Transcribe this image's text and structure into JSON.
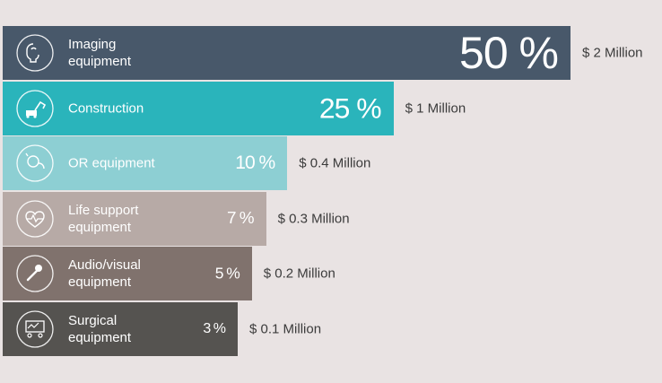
{
  "chart_data": {
    "type": "bar",
    "orientation": "horizontal",
    "categories": [
      "Imaging equipment",
      "Construction",
      "OR equipment",
      "Life support equipment",
      "Audio/visual equipment",
      "Surgical equipment"
    ],
    "series": [
      {
        "values": [
          50,
          25,
          10,
          7,
          5,
          3
        ]
      }
    ],
    "bars": [
      {
        "label": "Imaging\nequipment",
        "percent_label": "50 %",
        "percent": 50,
        "amount_label": "$ 2 Million",
        "color": "#48586a",
        "icon": "imaging-icon"
      },
      {
        "label": "Construction",
        "percent_label": "25 %",
        "percent": 25,
        "amount_label": "$ 1 Million",
        "color": "#2ab4bb",
        "icon": "excavator-icon"
      },
      {
        "label": "OR equipment",
        "percent_label": "10 %",
        "percent": 10,
        "amount_label": "$ 0.4 Million",
        "color": "#8dcfd3",
        "icon": "or-equipment-icon"
      },
      {
        "label": "Life support\nequipment",
        "percent_label": "7 %",
        "percent": 7,
        "amount_label": "$ 0.3 Million",
        "color": "#b7aaa6",
        "icon": "heart-monitor-icon"
      },
      {
        "label": "Audio/visual\nequipment",
        "percent_label": "5 %",
        "percent": 5,
        "amount_label": "$ 0.2 Million",
        "color": "#80726d",
        "icon": "microphone-icon"
      },
      {
        "label": "Surgical\nequipment",
        "percent_label": "3 %",
        "percent": 3,
        "amount_label": "$ 0.1 Million",
        "color": "#555350",
        "icon": "surgical-icon"
      }
    ],
    "title": "",
    "xlabel": "",
    "ylabel": "",
    "grid": false,
    "legend": "none"
  }
}
